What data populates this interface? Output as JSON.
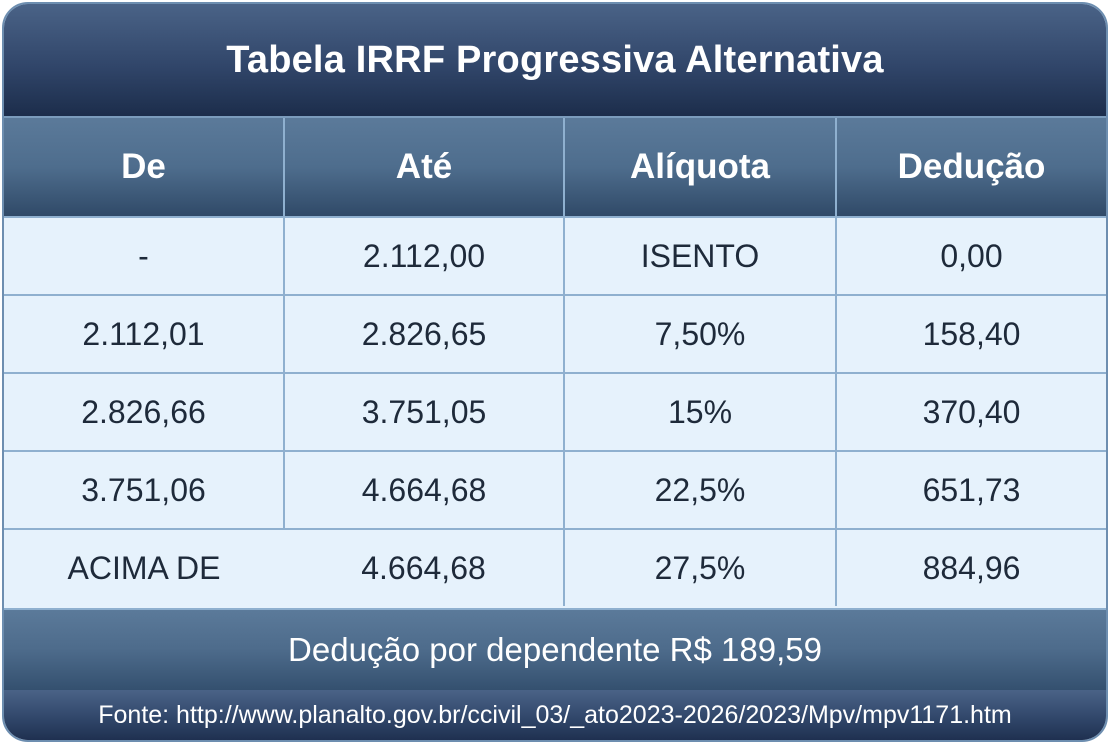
{
  "title": "Tabela IRRF Progressiva Alternativa",
  "table": {
    "headers": [
      "De",
      "Até",
      "Alíquota",
      "Dedução"
    ],
    "rows": [
      [
        "-",
        "2.112,00",
        "ISENTO",
        "0,00"
      ],
      [
        "2.112,01",
        "2.826,65",
        "7,50%",
        "158,40"
      ],
      [
        "2.826,66",
        "3.751,05",
        "15%",
        "370,40"
      ],
      [
        "3.751,06",
        "4.664,68",
        "22,5%",
        "651,73"
      ],
      [
        "ACIMA DE",
        "4.664,68",
        "27,5%",
        "884,96"
      ]
    ]
  },
  "dependent_deduction": "Dedução por dependente R$ 189,59",
  "source": "Fonte: http://www.planalto.gov.br/ccivil_03/_ato2023-2026/2023/Mpv/mpv1171.htm",
  "colors": {
    "header_dark": "#1c2d4b",
    "header_mid": "#4e6d8d",
    "cell_bg": "#e6f2fc",
    "border": "#8fb0cf",
    "text": "#1e2a3a"
  }
}
